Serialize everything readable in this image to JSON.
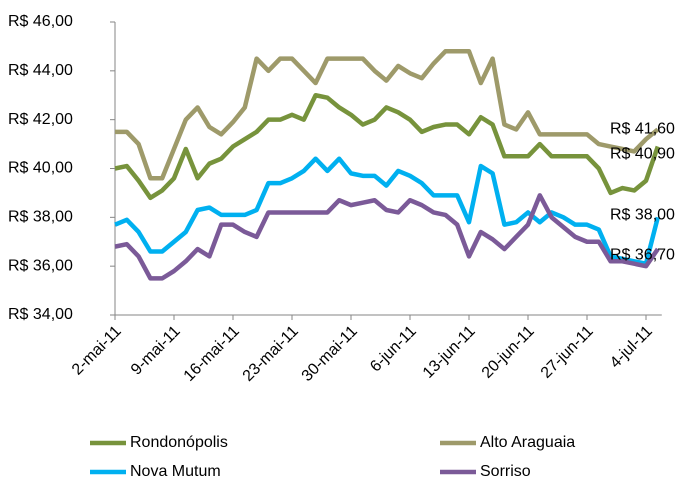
{
  "chart_data": {
    "type": "line",
    "categories": [
      "2-mai-11",
      null,
      null,
      null,
      null,
      "9-mai-11",
      null,
      null,
      null,
      null,
      "16-mai-11",
      null,
      null,
      null,
      null,
      "23-mai-11",
      null,
      null,
      null,
      null,
      "30-mai-11",
      null,
      null,
      null,
      null,
      "6-jun-11",
      null,
      null,
      null,
      null,
      "13-jun-11",
      null,
      null,
      null,
      null,
      "20-jun-11",
      null,
      null,
      null,
      null,
      "27-jun-11",
      null,
      null,
      null,
      null,
      "4-jul-11",
      null
    ],
    "ylim": [
      34,
      46
    ],
    "yticks": [
      {
        "value": 34,
        "label": "R$ 34,00"
      },
      {
        "value": 36,
        "label": "R$ 36,00"
      },
      {
        "value": 38,
        "label": "R$ 38,00"
      },
      {
        "value": 40,
        "label": "R$ 40,00"
      },
      {
        "value": 42,
        "label": "R$ 42,00"
      },
      {
        "value": 44,
        "label": "R$ 44,00"
      },
      {
        "value": 46,
        "label": "R$ 46,00"
      }
    ],
    "grid": false,
    "legend": "bottom",
    "series": [
      {
        "name": "Rondonópolis",
        "color": "#77933c",
        "values": [
          40.0,
          40.1,
          39.5,
          38.8,
          39.1,
          39.6,
          40.8,
          39.6,
          40.2,
          40.4,
          40.9,
          41.2,
          41.5,
          42.0,
          42.0,
          42.2,
          42.0,
          43.0,
          42.9,
          42.5,
          42.2,
          41.8,
          42.0,
          42.5,
          42.3,
          42.0,
          41.5,
          41.7,
          41.8,
          41.8,
          41.4,
          42.1,
          41.8,
          40.5,
          40.5,
          40.5,
          41.0,
          40.5,
          40.5,
          40.5,
          40.5,
          40.0,
          39.0,
          39.2,
          39.1,
          39.5,
          40.9
        ],
        "value_labels": {
          "46": "R$ 40,90"
        }
      },
      {
        "name": "Alto Araguaia",
        "color": "#9e9a6a",
        "values": [
          41.5,
          41.5,
          41.0,
          39.6,
          39.6,
          40.8,
          42.0,
          42.5,
          41.7,
          41.4,
          41.9,
          42.5,
          44.5,
          44.0,
          44.5,
          44.5,
          44.0,
          43.5,
          44.5,
          44.5,
          44.5,
          44.5,
          44.0,
          43.6,
          44.2,
          43.9,
          43.7,
          44.3,
          44.8,
          44.8,
          44.8,
          43.5,
          44.5,
          41.8,
          41.6,
          42.3,
          41.4,
          41.4,
          41.4,
          41.4,
          41.4,
          41.0,
          40.9,
          40.8,
          40.7,
          41.2,
          41.6
        ],
        "value_labels": {
          "46": "R$ 41,60"
        }
      },
      {
        "name": "Nova Mutum",
        "color": "#00b0f0",
        "values": [
          37.7,
          37.9,
          37.4,
          36.6,
          36.6,
          37.0,
          37.4,
          38.3,
          38.4,
          38.1,
          38.1,
          38.1,
          38.3,
          39.4,
          39.4,
          39.6,
          39.9,
          40.4,
          39.9,
          40.4,
          39.8,
          39.7,
          39.7,
          39.3,
          39.9,
          39.7,
          39.4,
          38.9,
          38.9,
          38.9,
          37.8,
          40.1,
          39.8,
          37.7,
          37.8,
          38.2,
          37.8,
          38.2,
          38.0,
          37.7,
          37.7,
          37.5,
          36.4,
          36.3,
          36.2,
          36.1,
          38.0
        ],
        "value_labels": {
          "46": "R$ 38,00"
        }
      },
      {
        "name": "Sorriso",
        "color": "#7b5a98",
        "values": [
          36.8,
          36.9,
          36.4,
          35.5,
          35.5,
          35.8,
          36.2,
          36.7,
          36.4,
          37.7,
          37.7,
          37.4,
          37.2,
          38.2,
          38.2,
          38.2,
          38.2,
          38.2,
          38.2,
          38.7,
          38.5,
          38.6,
          38.7,
          38.3,
          38.2,
          38.7,
          38.5,
          38.2,
          38.1,
          37.7,
          36.4,
          37.4,
          37.1,
          36.7,
          37.2,
          37.7,
          38.9,
          38.0,
          37.6,
          37.2,
          37.0,
          37.0,
          36.2,
          36.2,
          36.1,
          36.0,
          36.7
        ],
        "value_labels": {
          "46": "R$ 36,70"
        }
      }
    ]
  }
}
